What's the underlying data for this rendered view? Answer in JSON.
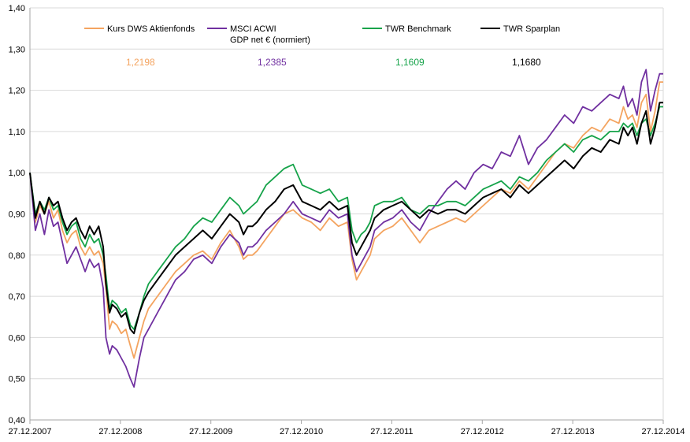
{
  "chart_data": {
    "type": "line",
    "title": "",
    "xlabel": "",
    "ylabel": "",
    "ylim": [
      0.4,
      1.4
    ],
    "yticks": [
      "0,40",
      "0,50",
      "0,60",
      "0,70",
      "0,80",
      "0,90",
      "1,00",
      "1,10",
      "1,20",
      "1,30",
      "1,40"
    ],
    "xticks": [
      "27.12.2007",
      "27.12.2008",
      "27.12.2009",
      "27.12.2010",
      "27.12.2011",
      "27.12.2012",
      "27.12.2013",
      "27.12.2014"
    ],
    "grid": "horizontal",
    "legend_position": "top",
    "series": [
      {
        "name": "Kurs DWS Aktienfonds",
        "color": "#f4a460",
        "final_label": "1,2198",
        "x": [
          2007.99,
          2008.05,
          2008.1,
          2008.15,
          2008.2,
          2008.25,
          2008.3,
          2008.35,
          2008.4,
          2008.45,
          2008.5,
          2008.55,
          2008.6,
          2008.65,
          2008.7,
          2008.75,
          2008.8,
          2008.83,
          2008.87,
          2008.9,
          2008.95,
          2009.0,
          2009.05,
          2009.1,
          2009.14,
          2009.2,
          2009.25,
          2009.3,
          2009.4,
          2009.5,
          2009.6,
          2009.7,
          2009.8,
          2009.9,
          2010.0,
          2010.1,
          2010.2,
          2010.3,
          2010.35,
          2010.4,
          2010.45,
          2010.5,
          2010.6,
          2010.7,
          2010.8,
          2010.9,
          2011.0,
          2011.1,
          2011.2,
          2011.3,
          2011.4,
          2011.5,
          2011.55,
          2011.6,
          2011.65,
          2011.7,
          2011.75,
          2011.8,
          2011.9,
          2012.0,
          2012.1,
          2012.2,
          2012.3,
          2012.4,
          2012.5,
          2012.6,
          2012.7,
          2012.8,
          2012.9,
          2013.0,
          2013.1,
          2013.2,
          2013.3,
          2013.4,
          2013.5,
          2013.6,
          2013.7,
          2013.8,
          2013.9,
          2014.0,
          2014.1,
          2014.2,
          2014.3,
          2014.4,
          2014.5,
          2014.55,
          2014.6,
          2014.65,
          2014.7,
          2014.75,
          2014.8,
          2014.85,
          2014.9,
          2014.95,
          2014.99
        ],
        "y": [
          1.0,
          0.88,
          0.92,
          0.9,
          0.93,
          0.89,
          0.91,
          0.86,
          0.83,
          0.85,
          0.86,
          0.82,
          0.8,
          0.82,
          0.8,
          0.81,
          0.78,
          0.72,
          0.62,
          0.64,
          0.63,
          0.61,
          0.62,
          0.58,
          0.55,
          0.6,
          0.64,
          0.67,
          0.7,
          0.73,
          0.76,
          0.78,
          0.8,
          0.81,
          0.79,
          0.83,
          0.86,
          0.82,
          0.79,
          0.8,
          0.8,
          0.81,
          0.84,
          0.87,
          0.9,
          0.91,
          0.89,
          0.88,
          0.86,
          0.89,
          0.87,
          0.88,
          0.79,
          0.74,
          0.76,
          0.78,
          0.8,
          0.84,
          0.86,
          0.87,
          0.89,
          0.86,
          0.83,
          0.86,
          0.87,
          0.88,
          0.89,
          0.88,
          0.9,
          0.92,
          0.94,
          0.96,
          0.95,
          0.98,
          0.96,
          0.99,
          1.02,
          1.05,
          1.07,
          1.06,
          1.09,
          1.11,
          1.1,
          1.13,
          1.12,
          1.16,
          1.13,
          1.14,
          1.11,
          1.17,
          1.19,
          1.1,
          1.15,
          1.22,
          1.22
        ]
      },
      {
        "name": "MSCI ACWI GDP net € (normiert)",
        "name_lines": [
          "MSCI ACWI",
          "GDP net € (normiert)"
        ],
        "color": "#7030a0",
        "final_label": "1,2385",
        "x": [
          2007.99,
          2008.05,
          2008.1,
          2008.15,
          2008.2,
          2008.25,
          2008.3,
          2008.35,
          2008.4,
          2008.45,
          2008.5,
          2008.55,
          2008.6,
          2008.65,
          2008.7,
          2008.75,
          2008.8,
          2008.83,
          2008.87,
          2008.9,
          2008.95,
          2009.0,
          2009.05,
          2009.1,
          2009.14,
          2009.2,
          2009.25,
          2009.3,
          2009.4,
          2009.5,
          2009.6,
          2009.7,
          2009.8,
          2009.9,
          2010.0,
          2010.1,
          2010.2,
          2010.3,
          2010.35,
          2010.4,
          2010.45,
          2010.5,
          2010.6,
          2010.7,
          2010.8,
          2010.9,
          2011.0,
          2011.1,
          2011.2,
          2011.3,
          2011.4,
          2011.5,
          2011.55,
          2011.6,
          2011.65,
          2011.7,
          2011.75,
          2011.8,
          2011.9,
          2012.0,
          2012.1,
          2012.2,
          2012.3,
          2012.4,
          2012.5,
          2012.6,
          2012.7,
          2012.8,
          2012.9,
          2013.0,
          2013.1,
          2013.2,
          2013.3,
          2013.4,
          2013.5,
          2013.6,
          2013.7,
          2013.8,
          2013.9,
          2014.0,
          2014.1,
          2014.2,
          2014.3,
          2014.4,
          2014.5,
          2014.55,
          2014.6,
          2014.65,
          2014.7,
          2014.75,
          2014.8,
          2014.85,
          2014.9,
          2014.95,
          2014.99
        ],
        "y": [
          1.0,
          0.86,
          0.9,
          0.85,
          0.91,
          0.87,
          0.88,
          0.83,
          0.78,
          0.8,
          0.82,
          0.79,
          0.76,
          0.79,
          0.77,
          0.78,
          0.72,
          0.6,
          0.56,
          0.58,
          0.57,
          0.55,
          0.53,
          0.5,
          0.48,
          0.55,
          0.6,
          0.62,
          0.66,
          0.7,
          0.74,
          0.76,
          0.79,
          0.8,
          0.78,
          0.82,
          0.85,
          0.83,
          0.8,
          0.82,
          0.82,
          0.83,
          0.86,
          0.88,
          0.9,
          0.93,
          0.9,
          0.89,
          0.88,
          0.91,
          0.89,
          0.9,
          0.8,
          0.76,
          0.78,
          0.8,
          0.82,
          0.86,
          0.88,
          0.89,
          0.91,
          0.88,
          0.86,
          0.9,
          0.93,
          0.96,
          0.98,
          0.96,
          1.0,
          1.02,
          1.01,
          1.05,
          1.04,
          1.09,
          1.02,
          1.06,
          1.08,
          1.11,
          1.14,
          1.12,
          1.16,
          1.15,
          1.17,
          1.19,
          1.18,
          1.21,
          1.16,
          1.18,
          1.14,
          1.22,
          1.25,
          1.15,
          1.2,
          1.24,
          1.24
        ]
      },
      {
        "name": "TWR Benchmark",
        "color": "#16a34a",
        "final_label": "1,1609",
        "x": [
          2007.99,
          2008.05,
          2008.1,
          2008.15,
          2008.2,
          2008.25,
          2008.3,
          2008.35,
          2008.4,
          2008.45,
          2008.5,
          2008.55,
          2008.6,
          2008.65,
          2008.7,
          2008.75,
          2008.8,
          2008.83,
          2008.87,
          2008.9,
          2008.95,
          2009.0,
          2009.05,
          2009.1,
          2009.14,
          2009.2,
          2009.25,
          2009.3,
          2009.4,
          2009.5,
          2009.6,
          2009.7,
          2009.8,
          2009.9,
          2010.0,
          2010.1,
          2010.2,
          2010.3,
          2010.35,
          2010.4,
          2010.45,
          2010.5,
          2010.6,
          2010.7,
          2010.8,
          2010.9,
          2011.0,
          2011.1,
          2011.2,
          2011.3,
          2011.4,
          2011.5,
          2011.55,
          2011.6,
          2011.65,
          2011.7,
          2011.75,
          2011.8,
          2011.9,
          2012.0,
          2012.1,
          2012.2,
          2012.3,
          2012.4,
          2012.5,
          2012.6,
          2012.7,
          2012.8,
          2012.9,
          2013.0,
          2013.1,
          2013.2,
          2013.3,
          2013.4,
          2013.5,
          2013.6,
          2013.7,
          2013.8,
          2013.9,
          2014.0,
          2014.1,
          2014.2,
          2014.3,
          2014.4,
          2014.5,
          2014.55,
          2014.6,
          2014.65,
          2014.7,
          2014.75,
          2014.8,
          2014.85,
          2014.9,
          2014.95,
          2014.99
        ],
        "y": [
          1.0,
          0.9,
          0.93,
          0.91,
          0.94,
          0.91,
          0.92,
          0.88,
          0.85,
          0.87,
          0.88,
          0.84,
          0.82,
          0.85,
          0.83,
          0.84,
          0.8,
          0.75,
          0.67,
          0.69,
          0.68,
          0.66,
          0.67,
          0.63,
          0.62,
          0.66,
          0.7,
          0.73,
          0.76,
          0.79,
          0.82,
          0.84,
          0.87,
          0.89,
          0.88,
          0.91,
          0.94,
          0.92,
          0.9,
          0.91,
          0.92,
          0.93,
          0.97,
          0.99,
          1.01,
          1.02,
          0.97,
          0.96,
          0.95,
          0.96,
          0.93,
          0.94,
          0.86,
          0.83,
          0.85,
          0.86,
          0.88,
          0.92,
          0.93,
          0.93,
          0.94,
          0.91,
          0.9,
          0.92,
          0.92,
          0.93,
          0.93,
          0.92,
          0.94,
          0.96,
          0.97,
          0.98,
          0.96,
          0.99,
          0.98,
          1.0,
          1.03,
          1.05,
          1.07,
          1.05,
          1.08,
          1.09,
          1.08,
          1.1,
          1.1,
          1.12,
          1.11,
          1.12,
          1.09,
          1.12,
          1.13,
          1.09,
          1.12,
          1.16,
          1.16
        ]
      },
      {
        "name": "TWR Sparplan",
        "color": "#000000",
        "final_label": "1,1680",
        "x": [
          2007.99,
          2008.05,
          2008.1,
          2008.15,
          2008.2,
          2008.25,
          2008.3,
          2008.35,
          2008.4,
          2008.45,
          2008.5,
          2008.55,
          2008.6,
          2008.65,
          2008.7,
          2008.75,
          2008.8,
          2008.83,
          2008.87,
          2008.9,
          2008.95,
          2009.0,
          2009.05,
          2009.1,
          2009.14,
          2009.2,
          2009.25,
          2009.3,
          2009.4,
          2009.5,
          2009.6,
          2009.7,
          2009.8,
          2009.9,
          2010.0,
          2010.1,
          2010.2,
          2010.3,
          2010.35,
          2010.4,
          2010.45,
          2010.5,
          2010.6,
          2010.7,
          2010.8,
          2010.9,
          2011.0,
          2011.1,
          2011.2,
          2011.3,
          2011.4,
          2011.5,
          2011.55,
          2011.6,
          2011.65,
          2011.7,
          2011.75,
          2011.8,
          2011.9,
          2012.0,
          2012.1,
          2012.2,
          2012.3,
          2012.4,
          2012.5,
          2012.6,
          2012.7,
          2012.8,
          2012.9,
          2013.0,
          2013.1,
          2013.2,
          2013.3,
          2013.4,
          2013.5,
          2013.6,
          2013.7,
          2013.8,
          2013.9,
          2014.0,
          2014.1,
          2014.2,
          2014.3,
          2014.4,
          2014.5,
          2014.55,
          2014.6,
          2014.65,
          2014.7,
          2014.75,
          2014.8,
          2014.85,
          2014.9,
          2014.95,
          2014.99
        ],
        "y": [
          1.0,
          0.89,
          0.93,
          0.9,
          0.94,
          0.92,
          0.93,
          0.89,
          0.86,
          0.88,
          0.89,
          0.86,
          0.84,
          0.87,
          0.85,
          0.87,
          0.82,
          0.73,
          0.66,
          0.68,
          0.67,
          0.65,
          0.66,
          0.62,
          0.61,
          0.66,
          0.69,
          0.71,
          0.74,
          0.77,
          0.8,
          0.82,
          0.84,
          0.86,
          0.84,
          0.87,
          0.9,
          0.88,
          0.85,
          0.87,
          0.87,
          0.88,
          0.91,
          0.93,
          0.96,
          0.97,
          0.93,
          0.92,
          0.91,
          0.93,
          0.91,
          0.92,
          0.83,
          0.8,
          0.82,
          0.84,
          0.86,
          0.89,
          0.91,
          0.92,
          0.93,
          0.91,
          0.89,
          0.91,
          0.9,
          0.91,
          0.91,
          0.9,
          0.92,
          0.94,
          0.95,
          0.96,
          0.94,
          0.97,
          0.95,
          0.97,
          0.99,
          1.01,
          1.03,
          1.01,
          1.04,
          1.06,
          1.05,
          1.08,
          1.07,
          1.11,
          1.09,
          1.11,
          1.07,
          1.12,
          1.15,
          1.07,
          1.11,
          1.17,
          1.17
        ]
      }
    ]
  }
}
